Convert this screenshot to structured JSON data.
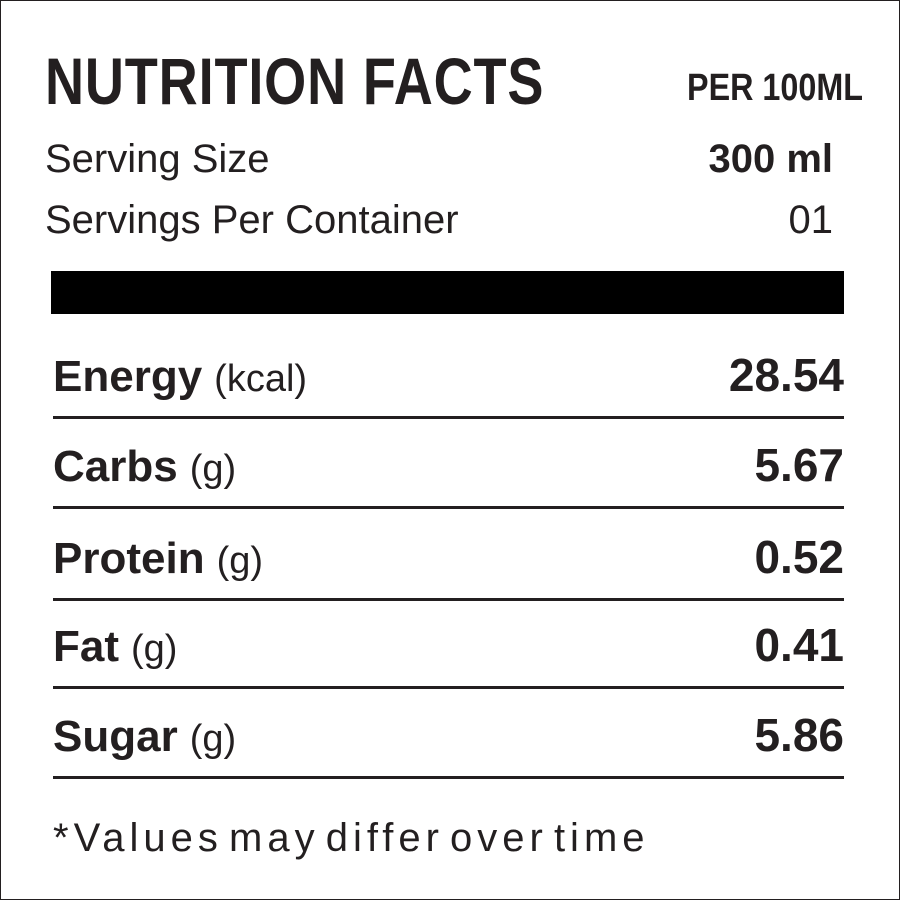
{
  "header": {
    "title": "NUTRITION FACTS",
    "subtitle": "PER 100ML"
  },
  "serving": [
    {
      "label": "Serving Size",
      "value": "300 ml"
    },
    {
      "label": "Servings Per Container",
      "value": "01"
    }
  ],
  "nutrients": [
    {
      "name": "Energy",
      "unit": "(kcal)",
      "value": 28.54
    },
    {
      "name": "Carbs",
      "unit": "(g)",
      "value": 5.67
    },
    {
      "name": "Protein",
      "unit": "(g)",
      "value": 0.52
    },
    {
      "name": "Fat",
      "unit": "(g)",
      "value": 0.41
    },
    {
      "name": "Sugar",
      "unit": "(g)",
      "value": 5.86
    }
  ],
  "footnote": "*Values may differ over time"
}
